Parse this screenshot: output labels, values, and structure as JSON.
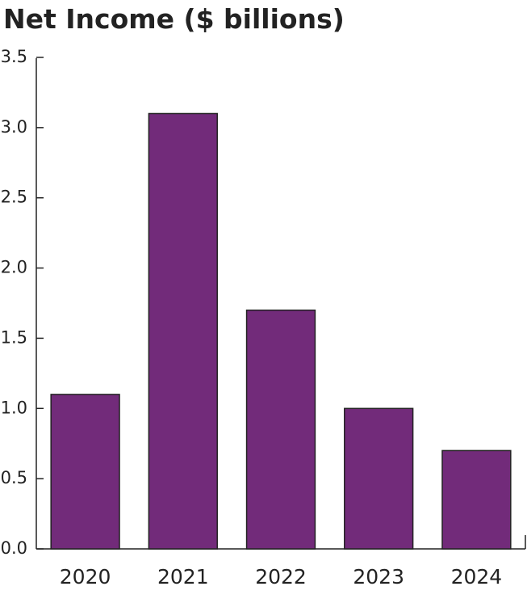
{
  "chart_data": {
    "type": "bar",
    "title": "Net Income ($ billions)",
    "categories": [
      "2020",
      "2021",
      "2022",
      "2023",
      "2024"
    ],
    "values": [
      1.1,
      3.1,
      1.7,
      1.0,
      0.7
    ],
    "color": "#722b7a",
    "ylim": [
      0,
      3.5
    ],
    "yticks": [
      {
        "value": 0,
        "label": "0.0"
      },
      0.5,
      {
        "value": 1,
        "label": "1.0"
      },
      1.5,
      {
        "value": 2,
        "label": "2.0"
      },
      2.5,
      {
        "value": 3,
        "label": "3.0"
      },
      3.5
    ]
  }
}
